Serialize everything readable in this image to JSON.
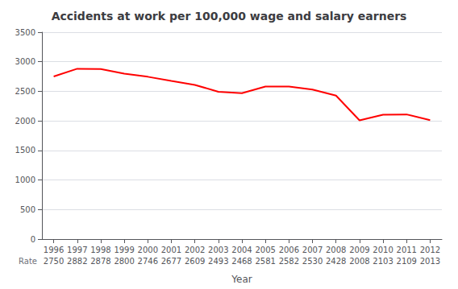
{
  "chart_data": {
    "type": "line",
    "title": "Accidents at work per 100,000 wage and salary earners",
    "xlabel": "Year",
    "x": [
      1996,
      1997,
      1998,
      1999,
      2000,
      2001,
      2002,
      2003,
      2004,
      2005,
      2006,
      2007,
      2008,
      2009,
      2010,
      2011,
      2012
    ],
    "values": [
      2750,
      2882,
      2878,
      2800,
      2746,
      2677,
      2609,
      2493,
      2468,
      2581,
      2582,
      2530,
      2428,
      2008,
      2103,
      2109,
      2013
    ],
    "color": "#ff0000",
    "xlim": [
      1995.5,
      2012.5
    ],
    "xticks": [
      1996,
      1997,
      1998,
      1999,
      2000,
      2001,
      2002,
      2003,
      2004,
      2005,
      2006,
      2007,
      2008,
      2009,
      2010,
      2011,
      2012
    ],
    "ylim": [
      0,
      3500
    ],
    "yticks": [
      0,
      500,
      1000,
      1500,
      2000,
      2500,
      3000,
      3500
    ],
    "grid": true,
    "annotations": [
      {
        "text": "Rate"
      },
      {
        "x": 1996,
        "text": "2750"
      },
      {
        "x": 1997,
        "text": "2882"
      },
      {
        "x": 1998,
        "text": "2878"
      },
      {
        "x": 1999,
        "text": "2800"
      },
      {
        "x": 2000,
        "text": "2746"
      },
      {
        "x": 2001,
        "text": "2677"
      },
      {
        "x": 2002,
        "text": "2609"
      },
      {
        "x": 2003,
        "text": "2493"
      },
      {
        "x": 2004,
        "text": "2468"
      },
      {
        "x": 2005,
        "text": "2581"
      },
      {
        "x": 2006,
        "text": "2582"
      },
      {
        "x": 2007,
        "text": "2530"
      },
      {
        "x": 2008,
        "text": "2428"
      },
      {
        "x": 2009,
        "text": "2008"
      },
      {
        "x": 2010,
        "text": "2103"
      },
      {
        "x": 2011,
        "text": "2109"
      },
      {
        "x": 2012,
        "text": "2013"
      }
    ]
  }
}
